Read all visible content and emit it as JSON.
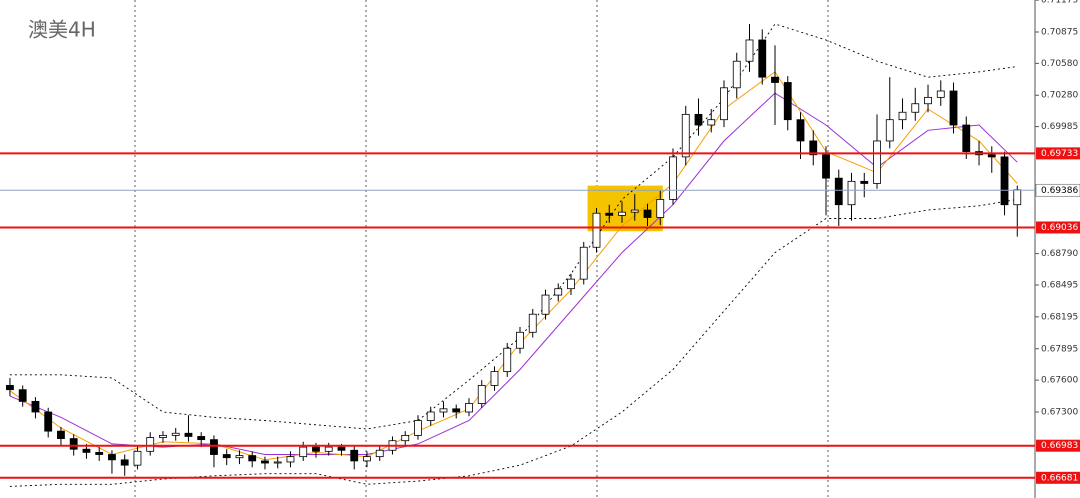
{
  "chart_data": {
    "type": "candlestick",
    "title": "澳美4H",
    "ylim": [
      0.66491,
      0.71176
    ],
    "xlim": [
      -0.78,
      80.39
    ],
    "yticks": [
      {
        "value": 0.71175,
        "label": "0.71175"
      },
      {
        "value": 0.70875,
        "label": "0.70875"
      },
      {
        "value": 0.7058,
        "label": "0.70580"
      },
      {
        "value": 0.7028,
        "label": "0.70280"
      },
      {
        "value": 0.69985,
        "label": "0.69985"
      },
      {
        "value": 0.6879,
        "label": "0.68790"
      },
      {
        "value": 0.68495,
        "label": "0.68495"
      },
      {
        "value": 0.68195,
        "label": "0.68195"
      },
      {
        "value": 0.67895,
        "label": "0.67895"
      },
      {
        "value": 0.676,
        "label": "0.67600"
      },
      {
        "value": 0.673,
        "label": "0.67300"
      }
    ],
    "up_color": "#ffffff",
    "down_color": "#000000",
    "open": [
      0.6755,
      0.6751,
      0.674,
      0.673,
      0.6712,
      0.6705,
      0.6695,
      0.6692,
      0.669,
      0.6685,
      0.668,
      0.6693,
      0.6706,
      0.6708,
      0.671,
      0.6707,
      0.6704,
      0.669,
      0.6687,
      0.6689,
      0.6684,
      0.6682,
      0.6683,
      0.6688,
      0.6697,
      0.6693,
      0.6697,
      0.6694,
      0.6684,
      0.6688,
      0.6694,
      0.6703,
      0.6708,
      0.6722,
      0.673,
      0.6733,
      0.673,
      0.6738,
      0.6755,
      0.6768,
      0.679,
      0.6805,
      0.6822,
      0.684,
      0.6846,
      0.6855,
      0.6885,
      0.6917,
      0.6915,
      0.6918,
      0.692,
      0.6913,
      0.693,
      0.697,
      0.701,
      0.7,
      0.7005,
      0.7035,
      0.706,
      0.708,
      0.7045,
      0.704,
      0.7005,
      0.6985,
      0.6972,
      0.695,
      0.6925,
      0.6947,
      0.6945,
      0.6985,
      0.7005,
      0.7012,
      0.702,
      0.7026,
      0.7032,
      0.7,
      0.6975,
      0.6972,
      0.697,
      0.6925
    ],
    "high": [
      0.6762,
      0.6755,
      0.6744,
      0.6734,
      0.6716,
      0.6709,
      0.67,
      0.6697,
      0.6694,
      0.669,
      0.6698,
      0.6711,
      0.6712,
      0.6715,
      0.6727,
      0.6711,
      0.6708,
      0.6695,
      0.6694,
      0.6693,
      0.6688,
      0.6688,
      0.6693,
      0.6702,
      0.6701,
      0.6701,
      0.67,
      0.6698,
      0.6693,
      0.6698,
      0.6707,
      0.6712,
      0.6727,
      0.6735,
      0.674,
      0.6737,
      0.6743,
      0.676,
      0.6773,
      0.6795,
      0.681,
      0.6827,
      0.6845,
      0.6851,
      0.686,
      0.689,
      0.6922,
      0.6925,
      0.6928,
      0.6935,
      0.6926,
      0.6938,
      0.6978,
      0.7018,
      0.7025,
      0.7015,
      0.7042,
      0.7068,
      0.7095,
      0.709,
      0.7075,
      0.7046,
      0.7012,
      0.6995,
      0.698,
      0.6958,
      0.6955,
      0.6955,
      0.701,
      0.7045,
      0.7025,
      0.7035,
      0.7038,
      0.7042,
      0.704,
      0.7008,
      0.6985,
      0.698,
      0.6975,
      0.6943
    ],
    "low": [
      0.6745,
      0.6735,
      0.6724,
      0.6706,
      0.6698,
      0.6689,
      0.6686,
      0.6684,
      0.6672,
      0.667,
      0.6676,
      0.6689,
      0.6701,
      0.6703,
      0.6702,
      0.6697,
      0.6678,
      0.668,
      0.6681,
      0.6678,
      0.6676,
      0.6677,
      0.6678,
      0.6684,
      0.6687,
      0.6689,
      0.6689,
      0.6676,
      0.6678,
      0.6684,
      0.669,
      0.6699,
      0.6704,
      0.6717,
      0.6725,
      0.6724,
      0.6726,
      0.6734,
      0.675,
      0.6763,
      0.6785,
      0.68,
      0.6817,
      0.6834,
      0.684,
      0.685,
      0.688,
      0.6908,
      0.6908,
      0.691,
      0.6905,
      0.6906,
      0.6925,
      0.6962,
      0.699,
      0.6993,
      0.6998,
      0.7025,
      0.705,
      0.7038,
      0.7,
      0.6995,
      0.6968,
      0.6962,
      0.6915,
      0.6905,
      0.691,
      0.6932,
      0.694,
      0.6978,
      0.6996,
      0.7004,
      0.7012,
      0.7018,
      0.6992,
      0.6968,
      0.6962,
      0.6955,
      0.6915,
      0.6895
    ],
    "close": [
      0.6751,
      0.674,
      0.673,
      0.6712,
      0.6705,
      0.6695,
      0.6692,
      0.669,
      0.6685,
      0.668,
      0.6693,
      0.6706,
      0.6708,
      0.671,
      0.6707,
      0.6704,
      0.669,
      0.6687,
      0.6689,
      0.6684,
      0.6682,
      0.6683,
      0.6688,
      0.6697,
      0.6693,
      0.6697,
      0.6694,
      0.6684,
      0.6688,
      0.6694,
      0.6703,
      0.6708,
      0.6722,
      0.673,
      0.6733,
      0.673,
      0.6738,
      0.6755,
      0.6768,
      0.679,
      0.6805,
      0.6822,
      0.684,
      0.6846,
      0.6855,
      0.6885,
      0.6917,
      0.6915,
      0.6918,
      0.692,
      0.6913,
      0.693,
      0.697,
      0.701,
      0.7,
      0.7005,
      0.7035,
      0.706,
      0.708,
      0.7045,
      0.704,
      0.7005,
      0.6985,
      0.6972,
      0.695,
      0.6925,
      0.6947,
      0.6945,
      0.6985,
      0.7005,
      0.7012,
      0.702,
      0.7026,
      0.7032,
      0.7,
      0.6975,
      0.6972,
      0.697,
      0.6925,
      0.6939
    ],
    "lines": [
      {
        "color": "#000000",
        "dash": true,
        "x": [
          0,
          4,
          8,
          12,
          16,
          20,
          24,
          28,
          32,
          36,
          40,
          44,
          48,
          52,
          56,
          60,
          64,
          68,
          72,
          76,
          79
        ],
        "values": [
          0.6765,
          0.6765,
          0.6762,
          0.673,
          0.6725,
          0.6722,
          0.6718,
          0.6714,
          0.6722,
          0.676,
          0.68,
          0.686,
          0.693,
          0.697,
          0.7025,
          0.7095,
          0.708,
          0.706,
          0.7045,
          0.705,
          0.7055
        ]
      },
      {
        "color": "#000000",
        "dash": true,
        "x": [
          0,
          4,
          8,
          12,
          16,
          20,
          24,
          28,
          32,
          36,
          40,
          44,
          48,
          52,
          56,
          60,
          64,
          68,
          72,
          76,
          79
        ],
        "values": [
          0.666,
          0.6662,
          0.6662,
          0.6667,
          0.667,
          0.6672,
          0.6672,
          0.6662,
          0.6665,
          0.667,
          0.668,
          0.6698,
          0.673,
          0.677,
          0.6825,
          0.688,
          0.6912,
          0.6912,
          0.692,
          0.6924,
          0.693
        ]
      },
      {
        "color": "#9b30d9",
        "dash": false,
        "x": [
          0,
          4,
          8,
          12,
          16,
          20,
          24,
          28,
          32,
          36,
          40,
          44,
          48,
          52,
          56,
          60,
          64,
          68,
          72,
          76,
          79
        ],
        "values": [
          0.6745,
          0.6725,
          0.67,
          0.6697,
          0.67,
          0.669,
          0.669,
          0.669,
          0.67,
          0.6722,
          0.677,
          0.6825,
          0.688,
          0.6925,
          0.6985,
          0.703,
          0.7,
          0.696,
          0.6995,
          0.7,
          0.6965
        ]
      },
      {
        "color": "#f5a000",
        "dash": false,
        "x": [
          0,
          4,
          8,
          12,
          16,
          20,
          24,
          28,
          32,
          36,
          40,
          44,
          48,
          52,
          56,
          60,
          64,
          68,
          72,
          76,
          79
        ],
        "values": [
          0.675,
          0.6715,
          0.669,
          0.6702,
          0.67,
          0.6685,
          0.6692,
          0.6688,
          0.6712,
          0.6733,
          0.6795,
          0.6845,
          0.6905,
          0.6945,
          0.7015,
          0.705,
          0.6975,
          0.6955,
          0.7015,
          0.6985,
          0.6945
        ]
      }
    ],
    "highlight": {
      "x": [
        45.3,
        51.2
      ],
      "y": [
        0.69,
        0.6943
      ],
      "color": "#f5c400"
    },
    "levels": [
      {
        "value": 0.69733,
        "label": "0.69733",
        "color": "#ee1111"
      },
      {
        "value": 0.69036,
        "label": "0.69036",
        "color": "#ee1111"
      },
      {
        "value": 0.66983,
        "label": "0.66983",
        "color": "#ee1111"
      },
      {
        "value": 0.66681,
        "label": "0.66681",
        "color": "#ee1111"
      }
    ],
    "last_price": {
      "value": 0.69386,
      "label": "0.69386",
      "color": "#8fa3c0"
    }
  }
}
